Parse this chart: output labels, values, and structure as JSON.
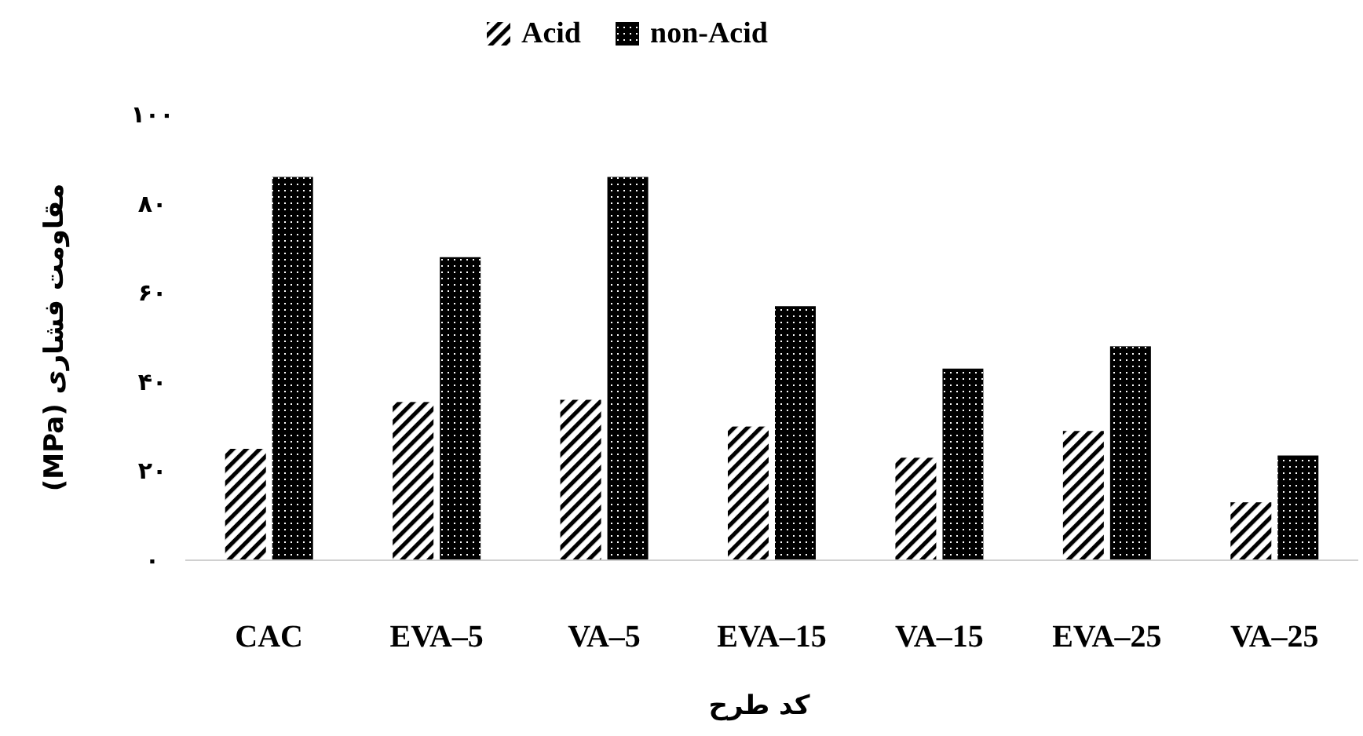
{
  "chart_data": {
    "type": "bar",
    "xlabel": "کد طرح",
    "ylabel": "مقاومت فشاری (MPa)",
    "categories": [
      "CAC",
      "EVA–5",
      "VA–5",
      "EVA–15",
      "VA–15",
      "EVA–25",
      "VA–25"
    ],
    "series": [
      {
        "name": "Acid",
        "color": "#000000",
        "values": [
          25,
          35.5,
          36,
          30,
          23,
          29,
          13
        ]
      },
      {
        "name": "non-Acid",
        "color": "#000000",
        "values": [
          86,
          68,
          86,
          57,
          43,
          48,
          23.5
        ]
      }
    ],
    "ylim": [
      0,
      100
    ],
    "yticks": [
      {
        "value": 0,
        "label": "۰"
      },
      {
        "value": 20,
        "label": "۲۰"
      },
      {
        "value": 40,
        "label": "۴۰"
      },
      {
        "value": 60,
        "label": "۶۰"
      },
      {
        "value": 80,
        "label": "۸۰"
      },
      {
        "value": 100,
        "label": "۱۰۰"
      }
    ],
    "legend": "top",
    "grid": false
  }
}
